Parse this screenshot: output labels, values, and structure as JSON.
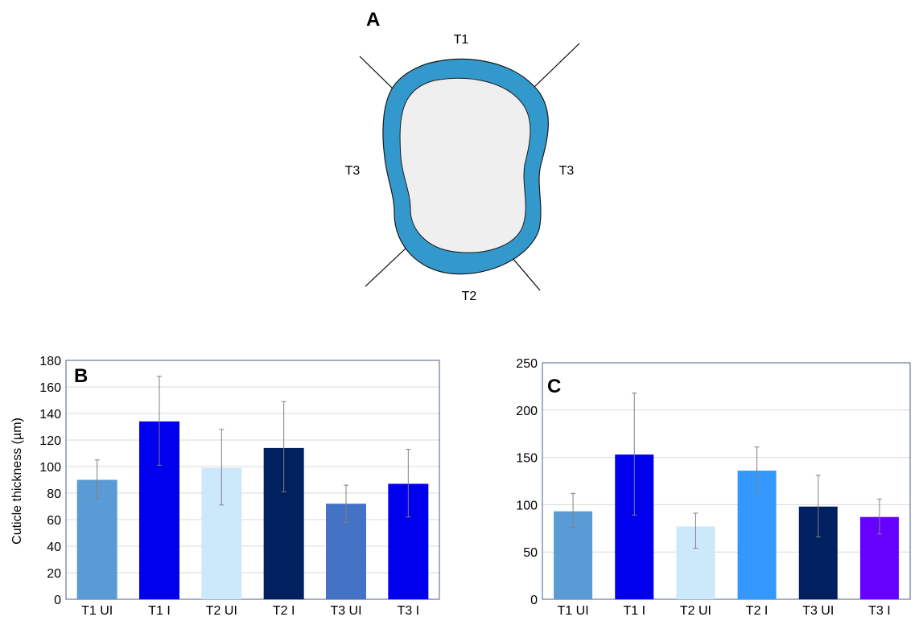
{
  "panel_a": {
    "letter": "A",
    "labels": {
      "top": "T1",
      "bottom": "T2",
      "left": "T3",
      "right": "T3"
    },
    "colors": {
      "ring": "#3399cc",
      "inner": "#efefef",
      "outline": "#1a1a1a"
    }
  },
  "chart_data": [
    {
      "type": "bar",
      "panel": "B",
      "categories": [
        "T1 UI",
        "T1 I",
        "T2 UI",
        "T2 I",
        "T3 UI",
        "T3 I"
      ],
      "values": [
        90,
        134,
        99,
        114,
        72,
        87
      ],
      "error_low": [
        76,
        101,
        71,
        81,
        58,
        62
      ],
      "error_high": [
        105,
        168,
        128,
        149,
        86,
        113
      ],
      "colors": [
        "#5b9bd5",
        "#0000ee",
        "#cce8fb",
        "#002060",
        "#4472c4",
        "#0000ee"
      ],
      "ylabel": "Cuticle thickness (µm)",
      "xlabel": "",
      "ylim": [
        0,
        180
      ],
      "yticks": [
        0,
        20,
        40,
        60,
        80,
        100,
        120,
        140,
        160,
        180
      ],
      "grid": true,
      "legend": "none"
    },
    {
      "type": "bar",
      "panel": "C",
      "categories": [
        "T1 UI",
        "T1 I",
        "T2 UI",
        "T2 I",
        "T3 UI",
        "T3 I"
      ],
      "values": [
        93,
        153,
        77,
        136,
        98,
        87
      ],
      "error_low": [
        76,
        89,
        54,
        113,
        66,
        69
      ],
      "error_high": [
        112,
        218,
        91,
        161,
        131,
        106
      ],
      "colors": [
        "#5b9bd5",
        "#0000ee",
        "#cce8fb",
        "#3399ff",
        "#002060",
        "#6600ff"
      ],
      "ylabel": "",
      "xlabel": "",
      "ylim": [
        0,
        250
      ],
      "yticks": [
        0,
        50,
        100,
        150,
        200,
        250
      ],
      "grid": true,
      "legend": "none"
    }
  ]
}
